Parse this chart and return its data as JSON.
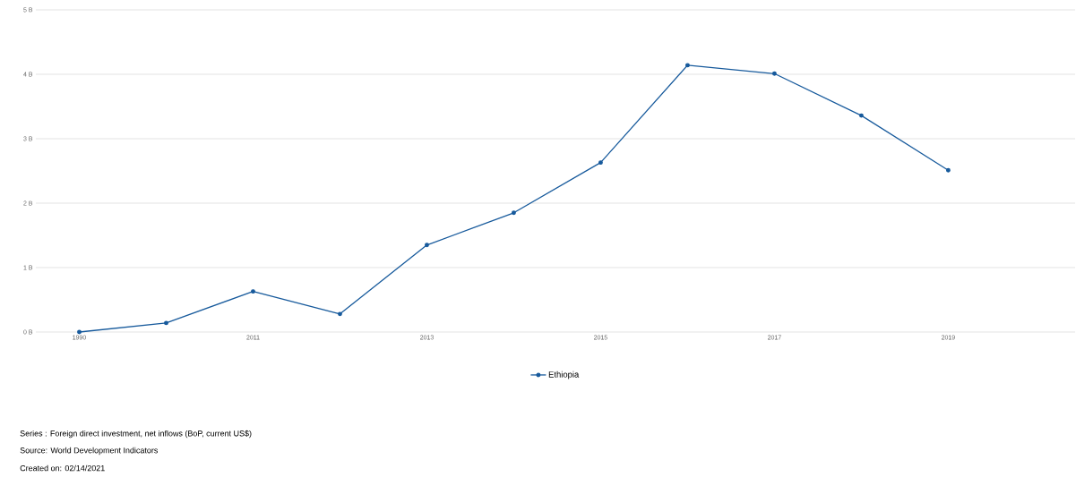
{
  "chart_data": {
    "type": "line",
    "categories": [
      "1990",
      null,
      "2011",
      null,
      "2013",
      null,
      "2015",
      null,
      "2017",
      null,
      "2019"
    ],
    "series": [
      {
        "name": "Ethiopia",
        "color": "#175a9c",
        "values": [
          0.0,
          0.14,
          0.63,
          0.28,
          1.35,
          1.85,
          2.63,
          4.14,
          4.01,
          3.36,
          2.51
        ]
      }
    ],
    "ylim": [
      0,
      5
    ],
    "yticks": [
      {
        "value": 0,
        "label": "0 B"
      },
      {
        "value": 1,
        "label": "1 B"
      },
      {
        "value": 2,
        "label": "2 B"
      },
      {
        "value": 3,
        "label": "3 B"
      },
      {
        "value": 4,
        "label": "4 B"
      },
      {
        "value": 5,
        "label": "5 B"
      }
    ],
    "grid": "y",
    "legend": "bottom",
    "marker": "circle",
    "line_style": "solid",
    "annotations": [
      "Series : Foreign direct investment, net inflows (BoP, current US$)",
      "Source: World Development Indicators",
      "Created on: 02/14/2021"
    ]
  }
}
